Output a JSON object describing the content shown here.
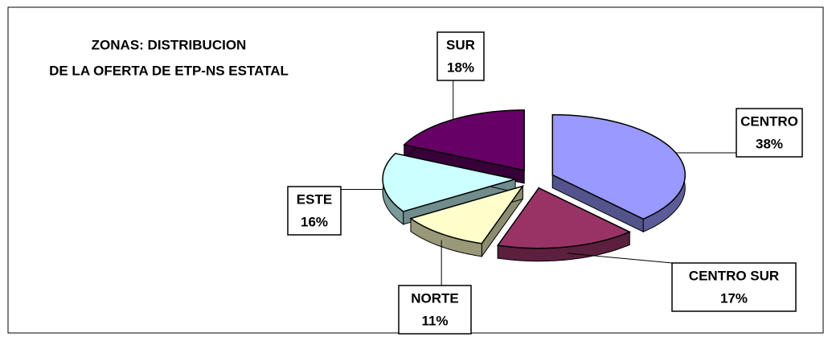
{
  "chart_data": {
    "type": "pie",
    "title": [
      "ZONAS: DISTRIBUCION",
      "DE LA OFERTA DE ETP-NS ESTATAL"
    ],
    "categories": [
      "CENTRO",
      "CENTRO SUR",
      "NORTE",
      "ESTE",
      "SUR"
    ],
    "values": [
      38,
      17,
      11,
      16,
      18
    ],
    "value_labels": [
      "38%",
      "17%",
      "11%",
      "16%",
      "18%"
    ],
    "colors": [
      "#9999ff",
      "#993366",
      "#ffffcc",
      "#ccffff",
      "#660066"
    ]
  }
}
